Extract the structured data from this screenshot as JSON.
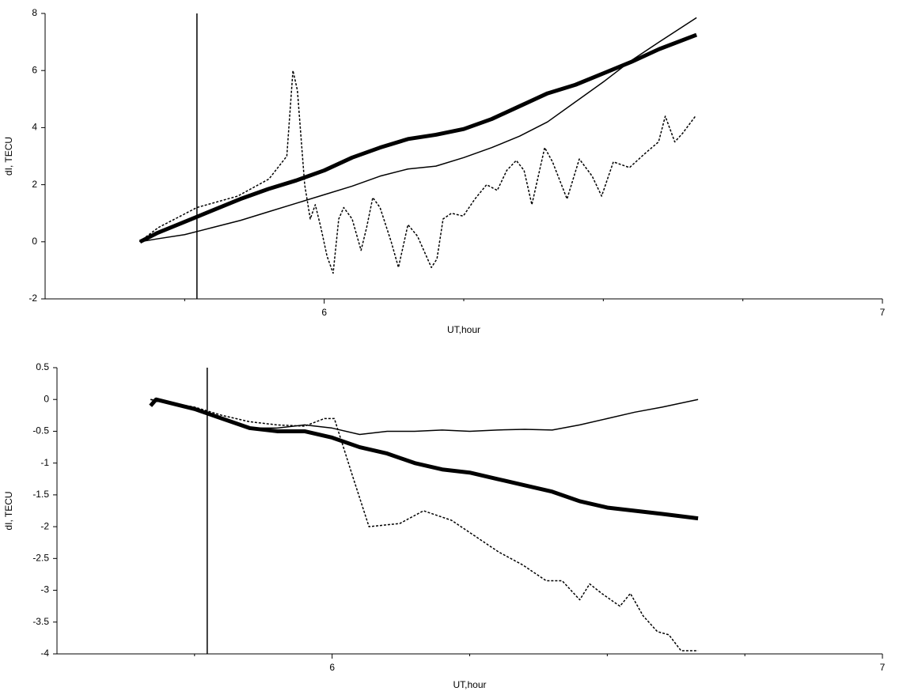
{
  "chart_data": [
    {
      "type": "line",
      "xlabel": "UT,hour",
      "ylabel": "dI, TECU",
      "xlim": [
        5.5,
        7
      ],
      "xticks": [
        6,
        7
      ],
      "xminor_ticks": [
        5.75,
        6.25,
        6.5,
        6.75
      ],
      "ylim": [
        -2,
        8
      ],
      "yticks": [
        -2,
        0,
        2,
        4,
        6,
        8
      ],
      "vline": 5.772,
      "series": [
        {
          "color": "#000000",
          "style": "thick",
          "x": [
            5.67,
            5.7,
            5.75,
            5.8,
            5.85,
            5.9,
            5.95,
            6.0,
            6.05,
            6.1,
            6.15,
            6.2,
            6.25,
            6.3,
            6.35,
            6.4,
            6.45,
            6.5,
            6.55,
            6.6,
            6.667
          ],
          "values": [
            0,
            0.3,
            0.7,
            1.1,
            1.5,
            1.85,
            2.15,
            2.5,
            2.95,
            3.3,
            3.6,
            3.75,
            3.95,
            4.3,
            4.75,
            5.2,
            5.5,
            5.9,
            6.3,
            6.75,
            7.25
          ]
        },
        {
          "color": "#000000",
          "style": "thin",
          "x": [
            5.67,
            5.7,
            5.75,
            5.8,
            5.85,
            5.9,
            5.95,
            6.0,
            6.05,
            6.1,
            6.15,
            6.2,
            6.25,
            6.3,
            6.35,
            6.4,
            6.45,
            6.5,
            6.55,
            6.6,
            6.667
          ],
          "values": [
            0,
            0.1,
            0.25,
            0.5,
            0.75,
            1.05,
            1.35,
            1.65,
            1.95,
            2.3,
            2.55,
            2.65,
            2.95,
            3.3,
            3.7,
            4.2,
            4.9,
            5.6,
            6.35,
            7.0,
            7.85
          ]
        },
        {
          "color": "#000000",
          "style": "dotted",
          "x": [
            5.669,
            5.703,
            5.772,
            5.845,
            5.901,
            5.933,
            5.944,
            5.952,
            5.965,
            5.975,
            5.984,
            5.994,
            6.005,
            6.016,
            6.026,
            6.035,
            6.05,
            6.066,
            6.076,
            6.087,
            6.1,
            6.12,
            6.133,
            6.15,
            6.167,
            6.192,
            6.202,
            6.213,
            6.228,
            6.249,
            6.27,
            6.291,
            6.31,
            6.327,
            6.344,
            6.358,
            6.372,
            6.395,
            6.409,
            6.435,
            6.457,
            6.48,
            6.497,
            6.518,
            6.547,
            6.575,
            6.599,
            6.611,
            6.628,
            6.642,
            6.665
          ],
          "values": [
            0,
            0.5,
            1.2,
            1.6,
            2.2,
            3.0,
            6.0,
            5.3,
            2.0,
            0.8,
            1.3,
            0.5,
            -0.5,
            -1.1,
            0.8,
            1.2,
            0.8,
            -0.3,
            0.5,
            1.55,
            1.2,
            0,
            -0.9,
            0.6,
            0.2,
            -0.9,
            -0.6,
            0.8,
            1.0,
            0.9,
            1.5,
            2.0,
            1.8,
            2.5,
            2.85,
            2.5,
            1.3,
            3.3,
            2.8,
            1.5,
            2.9,
            2.3,
            1.6,
            2.8,
            2.6,
            3.1,
            3.5,
            4.4,
            3.5,
            3.8,
            4.4
          ]
        }
      ]
    },
    {
      "type": "line",
      "xlabel": "UT,hour",
      "ylabel": "dI, TECU",
      "xlim": [
        5.5,
        7
      ],
      "xticks": [
        6,
        7
      ],
      "xminor_ticks": [
        5.75,
        6.25,
        6.5,
        6.75
      ],
      "ylim": [
        -4,
        0.5
      ],
      "yticks": [
        -4,
        -3.5,
        -3,
        -2.5,
        -2,
        -1.5,
        -1,
        -0.5,
        0,
        0.5
      ],
      "vline": 5.773,
      "series": [
        {
          "color": "#000000",
          "style": "thick",
          "x": [
            5.67,
            5.68,
            5.75,
            5.8,
            5.85,
            5.9,
            5.95,
            6.0,
            6.05,
            6.1,
            6.15,
            6.2,
            6.25,
            6.3,
            6.35,
            6.4,
            6.45,
            6.5,
            6.55,
            6.6,
            6.665
          ],
          "values": [
            -0.1,
            0,
            -0.15,
            -0.3,
            -0.45,
            -0.5,
            -0.5,
            -0.6,
            -0.75,
            -0.85,
            -1.0,
            -1.1,
            -1.15,
            -1.25,
            -1.35,
            -1.45,
            -1.6,
            -1.7,
            -1.75,
            -1.8,
            -1.87
          ]
        },
        {
          "color": "#000000",
          "style": "thin",
          "x": [
            5.67,
            5.75,
            5.8,
            5.85,
            5.9,
            5.95,
            6.0,
            6.05,
            6.1,
            6.15,
            6.2,
            6.25,
            6.3,
            6.35,
            6.4,
            6.45,
            6.5,
            6.55,
            6.6,
            6.665
          ],
          "values": [
            0,
            -0.15,
            -0.3,
            -0.45,
            -0.45,
            -0.4,
            -0.45,
            -0.55,
            -0.5,
            -0.5,
            -0.48,
            -0.5,
            -0.48,
            -0.47,
            -0.48,
            -0.4,
            -0.3,
            -0.2,
            -0.12,
            0
          ]
        },
        {
          "color": "#000000",
          "style": "dotted",
          "x": [
            5.67,
            5.75,
            5.8,
            5.85,
            5.9,
            5.95,
            5.986,
            6.004,
            6.015,
            6.037,
            6.067,
            6.123,
            6.166,
            6.217,
            6.26,
            6.303,
            6.346,
            6.389,
            6.418,
            6.45,
            6.468,
            6.49,
            6.523,
            6.542,
            6.565,
            6.591,
            6.612,
            6.634,
            6.665
          ],
          "values": [
            0,
            -0.12,
            -0.25,
            -0.35,
            -0.4,
            -0.42,
            -0.3,
            -0.3,
            -0.6,
            -1.2,
            -2.0,
            -1.95,
            -1.75,
            -1.9,
            -2.15,
            -2.4,
            -2.6,
            -2.85,
            -2.85,
            -3.15,
            -2.9,
            -3.05,
            -3.25,
            -3.05,
            -3.4,
            -3.65,
            -3.7,
            -3.95,
            -3.95
          ]
        }
      ]
    }
  ]
}
